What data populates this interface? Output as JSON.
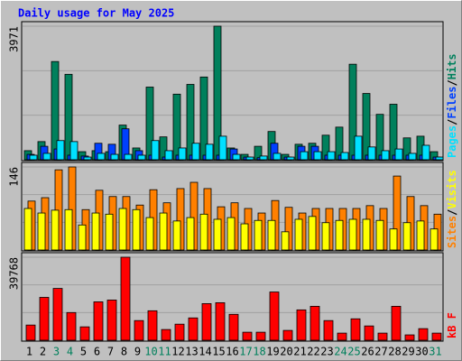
{
  "chart_data": {
    "type": "bar",
    "title": "Daily usage for May 2025",
    "categories": [
      "1",
      "2",
      "3",
      "4",
      "5",
      "6",
      "7",
      "8",
      "9",
      "10",
      "11",
      "12",
      "13",
      "14",
      "15",
      "16",
      "17",
      "18",
      "19",
      "20",
      "21",
      "22",
      "23",
      "24",
      "25",
      "26",
      "27",
      "28",
      "29",
      "30",
      "31"
    ],
    "category_colors": [
      "#000000",
      "#000000",
      "#00805c",
      "#00805c",
      "#000000",
      "#000000",
      "#000000",
      "#000000",
      "#000000",
      "#00805c",
      "#00805c",
      "#000000",
      "#000000",
      "#000000",
      "#000000",
      "#000000",
      "#00805c",
      "#00805c",
      "#000000",
      "#000000",
      "#000000",
      "#000000",
      "#000000",
      "#00805c",
      "#00805c",
      "#000000",
      "#000000",
      "#000000",
      "#000000",
      "#000000",
      "#00805c"
    ],
    "legend_separator": "/",
    "panels": [
      {
        "ylim": [
          0,
          3971
        ],
        "yticks": [
          3971
        ],
        "series": [
          {
            "name": "Pages",
            "color": "#00e0ff",
            "values": [
              135,
              190,
              570,
              540,
              80,
              190,
              160,
              160,
              135,
              570,
              270,
              350,
              490,
              460,
              700,
              160,
              80,
              110,
              190,
              80,
              240,
              240,
              240,
              215,
              700,
              380,
              270,
              320,
              190,
              430,
              80
            ]
          },
          {
            "name": "Files",
            "color": "#0040ff",
            "values": [
              160,
              400,
              320,
              135,
              110,
              490,
              460,
              920,
              270,
              135,
              80,
              135,
              135,
              135,
              135,
              320,
              80,
              60,
              490,
              80,
              400,
              400,
              135,
              135,
              135,
              135,
              135,
              135,
              135,
              135,
              80
            ]
          },
          {
            "name": "Hits",
            "color": "#00805c",
            "values": [
              270,
              540,
              2920,
              2540,
              240,
              270,
              240,
              1030,
              350,
              2160,
              680,
              1950,
              2240,
              2460,
              3971,
              350,
              160,
              400,
              840,
              160,
              460,
              490,
              730,
              970,
              2840,
              1970,
              1350,
              1650,
              650,
              700,
              240
            ]
          }
        ]
      },
      {
        "ylim": [
          0,
          146
        ],
        "yticks": [
          146
        ],
        "series": [
          {
            "name": "Sites",
            "color": "#ff8000",
            "values": [
              86,
              92,
              141,
              146,
              71,
              105,
              94,
              94,
              79,
              106,
              83,
              108,
              119,
              108,
              76,
              83,
              73,
              65,
              87,
              75,
              65,
              73,
              73,
              73,
              73,
              78,
              73,
              130,
              94,
              78,
              63
            ]
          },
          {
            "name": "Visits",
            "color": "#ffff00",
            "values": [
              73,
              65,
              70,
              71,
              44,
              65,
              63,
              73,
              71,
              57,
              65,
              51,
              57,
              63,
              54,
              57,
              46,
              52,
              52,
              32,
              54,
              59,
              48,
              52,
              54,
              54,
              52,
              37,
              48,
              51,
              37
            ]
          }
        ]
      },
      {
        "ylim": [
          0,
          39768
        ],
        "yticks": [
          39768
        ],
        "series": [
          {
            "name": "kB F",
            "color": "#ff0000",
            "values": [
              7280,
              20540,
              24820,
              13270,
              6420,
              18400,
              19260,
              39768,
              9420,
              14120,
              5140,
              7700,
              10700,
              17550,
              17980,
              12410,
              3850,
              3850,
              23110,
              4710,
              14550,
              16260,
              9420,
              3420,
              10270,
              6850,
              3420,
              16260,
              2570,
              5560,
              3420
            ]
          }
        ]
      }
    ]
  }
}
